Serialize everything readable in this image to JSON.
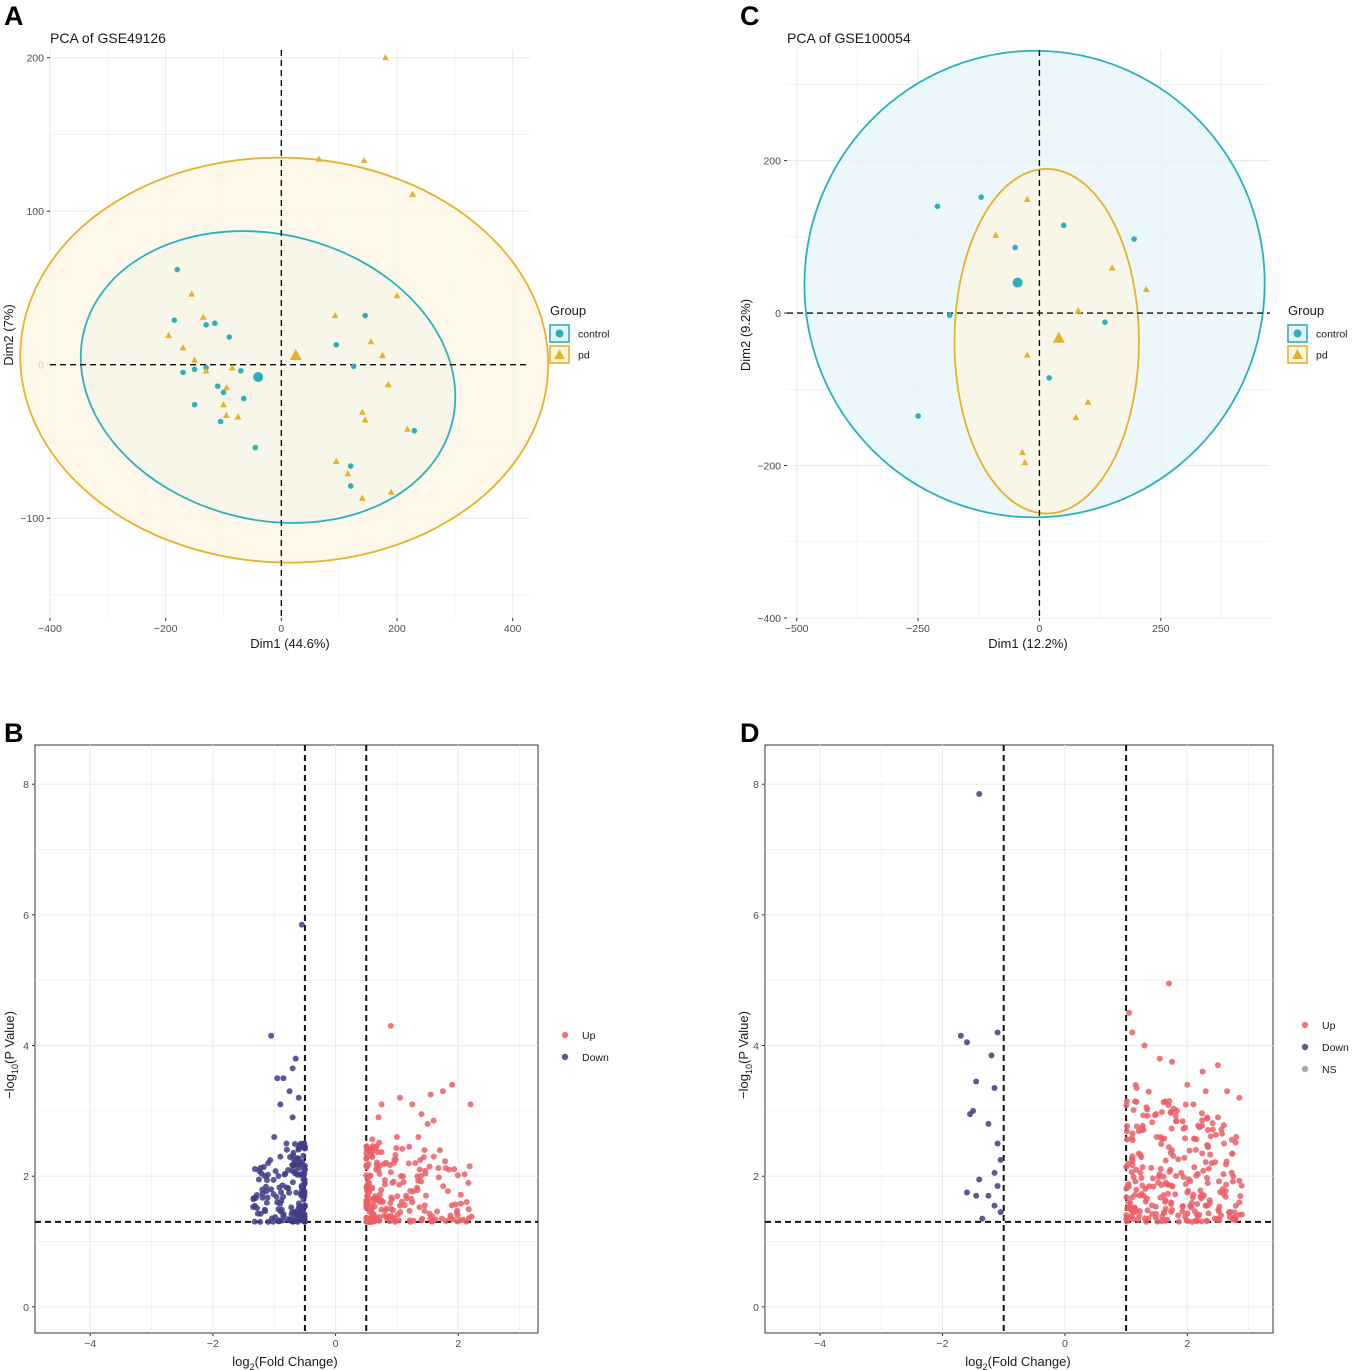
{
  "colors": {
    "control": "#2BB1BE",
    "pd": "#E5B22A",
    "control_fill": "#E6F4FA",
    "pd_fill": "#FCF6E3",
    "up": "#EB5F66",
    "down": "#3F3C86",
    "ns": "#9A9A9A"
  },
  "chart_data": [
    {
      "panel": "A",
      "type": "scatter",
      "title": "PCA of GSE49126",
      "xlabel": "Dim1 (44.6%)",
      "ylabel": "Dim2 (7%)",
      "xlim": [
        -400,
        430
      ],
      "ylim": [
        -165,
        205
      ],
      "xticks": [
        -400,
        -200,
        0,
        200,
        400
      ],
      "yticks": [
        -100,
        0,
        100,
        200
      ],
      "legend": {
        "title": "Group",
        "position": "right",
        "entries": [
          "control",
          "pd"
        ]
      },
      "ellipses": [
        {
          "group": "control",
          "cx": -23,
          "cy": -8,
          "rx": 328,
          "ry": 93,
          "angle_deg": -14
        },
        {
          "group": "pd",
          "cx": 5,
          "cy": 3,
          "rx": 350,
          "ry": 172,
          "angle_deg": 88
        }
      ],
      "centroids": [
        {
          "group": "control",
          "x": -40,
          "y": -8
        },
        {
          "group": "pd",
          "x": 25,
          "y": 6
        }
      ],
      "series": [
        {
          "name": "control",
          "points": [
            [
              -180,
              62
            ],
            [
              -185,
              29
            ],
            [
              -130,
              26
            ],
            [
              -115,
              27
            ],
            [
              -90,
              18
            ],
            [
              -170,
              -5
            ],
            [
              -150,
              -3
            ],
            [
              -130,
              -2
            ],
            [
              -110,
              -14
            ],
            [
              -100,
              -18
            ],
            [
              -70,
              -4
            ],
            [
              -65,
              -22
            ],
            [
              -105,
              -37
            ],
            [
              -150,
              -26
            ],
            [
              -45,
              -54
            ],
            [
              95,
              13
            ],
            [
              145,
              32
            ],
            [
              125,
              -1
            ],
            [
              230,
              -43
            ],
            [
              120,
              -66
            ],
            [
              120,
              -79
            ]
          ]
        },
        {
          "name": "pd",
          "points": [
            [
              -155,
              46
            ],
            [
              -135,
              31
            ],
            [
              -195,
              19
            ],
            [
              -170,
              11
            ],
            [
              -150,
              3
            ],
            [
              -130,
              -4
            ],
            [
              -95,
              -15
            ],
            [
              -85,
              -2
            ],
            [
              -100,
              -26
            ],
            [
              -95,
              -33
            ],
            [
              -75,
              -34
            ],
            [
              65,
              134
            ],
            [
              143,
              133
            ],
            [
              180,
              200
            ],
            [
              227,
              111
            ],
            [
              200,
              45
            ],
            [
              93,
              32
            ],
            [
              155,
              15
            ],
            [
              175,
              6
            ],
            [
              185,
              -13
            ],
            [
              140,
              -31
            ],
            [
              145,
              -36
            ],
            [
              218,
              -42
            ],
            [
              95,
              -63
            ],
            [
              115,
              -71
            ],
            [
              140,
              -87
            ],
            [
              190,
              -83
            ]
          ]
        }
      ]
    },
    {
      "panel": "C",
      "type": "scatter",
      "title": "PCA of GSE100054",
      "xlabel": "Dim1 (12.2%)",
      "ylabel": "Dim2 (9.2%)",
      "xlim": [
        -520,
        475
      ],
      "ylim": [
        -400,
        345
      ],
      "xticks": [
        -500,
        -250,
        0,
        250
      ],
      "yticks": [
        -400,
        -200,
        0,
        200
      ],
      "legend": {
        "title": "Group",
        "position": "right",
        "entries": [
          "control",
          "pd"
        ]
      },
      "ellipses": [
        {
          "group": "control",
          "cx": -10,
          "cy": 38,
          "rx": 474,
          "ry": 306,
          "angle_deg": -6
        },
        {
          "group": "pd",
          "cx": 15,
          "cy": -37,
          "rx": 355,
          "ry": 121,
          "angle_deg": 90
        }
      ],
      "centroids": [
        {
          "group": "control",
          "x": -45,
          "y": 40
        },
        {
          "group": "pd",
          "x": 40,
          "y": -33
        }
      ],
      "series": [
        {
          "name": "control",
          "points": [
            [
              -210,
              140
            ],
            [
              -120,
              152
            ],
            [
              50,
              115
            ],
            [
              -50,
              86
            ],
            [
              195,
              97
            ],
            [
              -185,
              -3
            ],
            [
              135,
              -12
            ],
            [
              20,
              -85
            ],
            [
              -250,
              -135
            ]
          ]
        },
        {
          "name": "pd",
          "points": [
            [
              -90,
              102
            ],
            [
              -25,
              149
            ],
            [
              150,
              59
            ],
            [
              220,
              31
            ],
            [
              80,
              3
            ],
            [
              -25,
              -55
            ],
            [
              100,
              -117
            ],
            [
              75,
              -137
            ],
            [
              -35,
              -183
            ],
            [
              -30,
              -196
            ]
          ]
        }
      ]
    },
    {
      "panel": "B",
      "type": "scatter",
      "title": "",
      "xlabel": "log2(Fold Change)",
      "ylabel": "−log10(P Value)",
      "xlim": [
        -4.9,
        3.3
      ],
      "ylim": [
        -0.4,
        8.6
      ],
      "xticks": [
        -4,
        -2,
        0,
        2
      ],
      "yticks": [
        0,
        2,
        4,
        6,
        8
      ],
      "thresholds": {
        "x": [
          -0.5,
          0.5
        ],
        "y": 1.3
      },
      "legend": {
        "position": "right",
        "entries": [
          "Up",
          "Down"
        ]
      },
      "series": [
        {
          "name": "Up",
          "x_range": [
            0.5,
            2.25
          ],
          "points": [
            [
              0.9,
              4.3
            ],
            [
              2.2,
              3.1
            ],
            [
              1.9,
              3.4
            ],
            [
              1.75,
              3.3
            ],
            [
              1.55,
              3.25
            ],
            [
              1.4,
              2.95
            ],
            [
              1.25,
              3.1
            ],
            [
              1.05,
              3.2
            ],
            [
              0.75,
              3.1
            ],
            [
              0.7,
              2.9
            ],
            [
              1.5,
              2.8
            ],
            [
              1.6,
              2.85
            ],
            [
              1.7,
              2.4
            ],
            [
              1.6,
              2.3
            ],
            [
              1.85,
              2.1
            ],
            [
              1.45,
              2.4
            ],
            [
              1.3,
              2.2
            ],
            [
              1.2,
              2.45
            ],
            [
              1.35,
              2.6
            ],
            [
              1.0,
              2.6
            ],
            [
              0.6,
              2.3
            ],
            [
              0.7,
              2.1
            ],
            [
              0.95,
              2.2
            ],
            [
              1.1,
              2.0
            ],
            [
              1.15,
              1.7
            ],
            [
              1.05,
              1.55
            ],
            [
              1.25,
              1.6
            ]
          ]
        },
        {
          "name": "Down",
          "x_range": [
            -1.35,
            -0.5
          ],
          "points": [
            [
              -0.55,
              5.85
            ],
            [
              -1.05,
              4.15
            ],
            [
              -0.65,
              3.8
            ],
            [
              -0.7,
              3.65
            ],
            [
              -0.95,
              3.5
            ],
            [
              -0.85,
              3.5
            ],
            [
              -0.75,
              3.3
            ],
            [
              -0.6,
              3.2
            ],
            [
              -0.9,
              3.1
            ],
            [
              -0.7,
              2.9
            ],
            [
              -1.0,
              2.6
            ],
            [
              -0.8,
              2.5
            ],
            [
              -0.9,
              2.3
            ],
            [
              -1.1,
              2.2
            ],
            [
              -1.15,
              2.0
            ],
            [
              -1.25,
              1.95
            ],
            [
              -1.05,
              1.8
            ],
            [
              -0.95,
              1.6
            ]
          ]
        }
      ]
    },
    {
      "panel": "D",
      "type": "scatter",
      "title": "",
      "xlabel": "log2(Fold Change)",
      "ylabel": "−log10(P Value)",
      "xlim": [
        -4.9,
        3.4
      ],
      "ylim": [
        -0.4,
        8.6
      ],
      "xticks": [
        -4,
        -2,
        0,
        2
      ],
      "yticks": [
        0,
        2,
        4,
        6,
        8
      ],
      "thresholds": {
        "x": [
          -1,
          1
        ],
        "y": 1.3
      },
      "legend": {
        "position": "right",
        "entries": [
          "Up",
          "Down",
          "NS"
        ]
      },
      "series": [
        {
          "name": "Up",
          "x_range": [
            1.0,
            2.9
          ],
          "points": [
            [
              1.7,
              4.95
            ],
            [
              1.05,
              4.5
            ],
            [
              1.1,
              4.2
            ],
            [
              1.3,
              4.0
            ],
            [
              1.55,
              3.8
            ],
            [
              1.75,
              3.75
            ],
            [
              2.25,
              3.6
            ],
            [
              2.5,
              3.7
            ],
            [
              2.0,
              3.4
            ],
            [
              2.3,
              3.3
            ],
            [
              2.65,
              3.3
            ],
            [
              2.85,
              3.2
            ],
            [
              2.1,
              3.1
            ],
            [
              2.5,
              2.9
            ],
            [
              2.8,
              2.6
            ],
            [
              2.6,
              2.5
            ],
            [
              2.4,
              2.2
            ],
            [
              2.75,
              2.0
            ],
            [
              2.85,
              1.6
            ],
            [
              2.3,
              1.55
            ],
            [
              2.0,
              1.75
            ],
            [
              1.9,
              2.05
            ],
            [
              1.75,
              2.4
            ],
            [
              1.65,
              1.9
            ],
            [
              1.5,
              2.6
            ],
            [
              2.45,
              1.35
            ],
            [
              2.55,
              1.4
            ],
            [
              2.7,
              1.45
            ],
            [
              1.85,
              1.4
            ],
            [
              2.2,
              2.75
            ]
          ]
        },
        {
          "name": "Down",
          "x_range": [
            -1.75,
            -1.0
          ],
          "points": [
            [
              -1.4,
              7.85
            ],
            [
              -1.7,
              4.15
            ],
            [
              -1.6,
              4.05
            ],
            [
              -1.1,
              4.2
            ],
            [
              -1.2,
              3.85
            ],
            [
              -1.45,
              3.45
            ],
            [
              -1.15,
              3.35
            ],
            [
              -1.5,
              3.0
            ],
            [
              -1.55,
              2.95
            ],
            [
              -1.25,
              2.8
            ],
            [
              -1.1,
              2.5
            ],
            [
              -1.05,
              2.25
            ],
            [
              -1.15,
              2.05
            ],
            [
              -1.4,
              1.95
            ],
            [
              -1.1,
              1.85
            ],
            [
              -1.6,
              1.75
            ],
            [
              -1.45,
              1.7
            ],
            [
              -1.25,
              1.7
            ],
            [
              -1.15,
              1.55
            ],
            [
              -1.05,
              1.45
            ],
            [
              -1.35,
              1.35
            ]
          ]
        },
        {
          "name": "NS",
          "points": []
        }
      ]
    }
  ]
}
